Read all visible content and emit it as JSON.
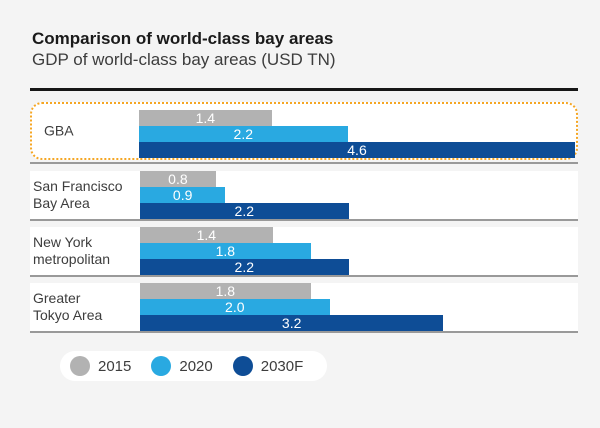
{
  "header": {
    "title": "Comparison of world-class bay areas",
    "subtitle": "GDP of world-class bay areas (USD TN)"
  },
  "chart_data": {
    "type": "bar",
    "orientation": "horizontal",
    "unit": "USD TN",
    "title": "Comparison of world-class bay areas",
    "subtitle": "GDP of world-class bay areas (USD TN)",
    "categories": [
      "GBA",
      "San Francisco Bay Area",
      "New York metropolitan",
      "Greater Tokyo Area"
    ],
    "category_display_lines": [
      "GBA",
      "San Francisco\nBay Area",
      "New York\nmetropolitan",
      "Greater\nTokyo Area"
    ],
    "series": [
      {
        "name": "2015",
        "color": "#b2b2b2",
        "values": [
          1.4,
          0.8,
          1.4,
          1.8
        ]
      },
      {
        "name": "2020",
        "color": "#29a9e1",
        "values": [
          2.2,
          0.9,
          1.8,
          2.0
        ]
      },
      {
        "name": "2030F",
        "color": "#0e4d96",
        "values": [
          4.6,
          2.2,
          2.2,
          3.2
        ]
      }
    ],
    "x_max": 4.6,
    "grid": false,
    "value_labels": true,
    "value_label_color": "#ffffff",
    "legend_position": "bottom-left",
    "highlight": {
      "category": "GBA",
      "border_color": "#f5a623",
      "style": "dotted-rounded"
    }
  },
  "colors": {
    "background": "#f4f4f4",
    "row_background": "#ffffff",
    "separator": "#999999",
    "header_rule": "#161616",
    "text": "#3d3d3d"
  }
}
